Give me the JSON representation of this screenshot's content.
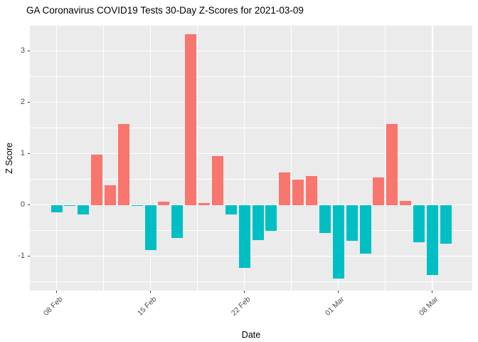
{
  "chart_data": {
    "type": "bar",
    "title": "GA Coronavirus COVID19 Tests 30-Day Z-Scores for 2021-03-09",
    "xlabel": "Date",
    "ylabel": "Z Score",
    "x": [
      "2021-02-08",
      "2021-02-09",
      "2021-02-10",
      "2021-02-11",
      "2021-02-12",
      "2021-02-13",
      "2021-02-14",
      "2021-02-15",
      "2021-02-16",
      "2021-02-17",
      "2021-02-18",
      "2021-02-19",
      "2021-02-20",
      "2021-02-21",
      "2021-02-22",
      "2021-02-23",
      "2021-02-24",
      "2021-02-25",
      "2021-02-26",
      "2021-02-27",
      "2021-02-28",
      "2021-03-01",
      "2021-03-02",
      "2021-03-03",
      "2021-03-04",
      "2021-03-05",
      "2021-03-06",
      "2021-03-07",
      "2021-03-08",
      "2021-03-09"
    ],
    "values": [
      -0.15,
      -0.02,
      -0.19,
      0.98,
      0.38,
      1.58,
      -0.02,
      -0.88,
      0.06,
      -0.64,
      3.32,
      0.04,
      0.95,
      -0.19,
      -1.22,
      -0.68,
      -0.5,
      0.63,
      0.49,
      0.56,
      -0.55,
      -1.43,
      -0.7,
      -0.95,
      0.53,
      1.57,
      0.08,
      -0.73,
      -1.37,
      -0.76
    ],
    "x_tick_labels": [
      "08 Feb",
      "15 Feb",
      "22 Feb",
      "01 Mar",
      "08 Mar"
    ],
    "x_tick_indices": [
      0,
      7,
      14,
      21,
      28
    ],
    "y_ticks": [
      3,
      2,
      1,
      0,
      -1
    ],
    "y_minor_ticks": [
      3.5,
      2.5,
      1.5,
      0.5,
      -0.5,
      -1.5
    ],
    "ylim": [
      -1.67,
      3.49
    ],
    "legend": "none",
    "colors": {
      "positive_bar": "#F8766D",
      "negative_bar": "#00BFC4",
      "panel_bg": "#EBEBEB",
      "gridline": "#FFFFFF",
      "axis_text": "#4D4D4D",
      "title_text": "#000000",
      "tick_mark": "#333333"
    }
  }
}
